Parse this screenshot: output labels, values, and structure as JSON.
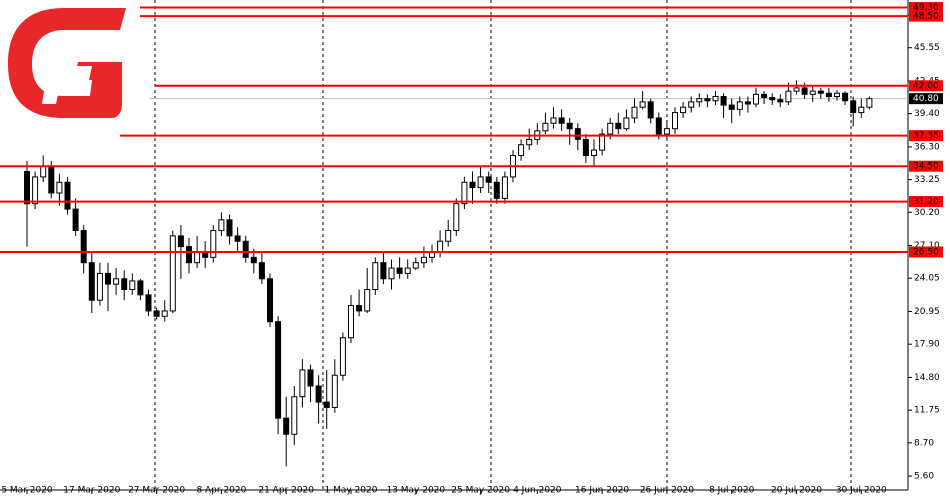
{
  "chart_data": {
    "type": "candlestick",
    "categories": [
      "5 Mar 2020",
      null,
      null,
      null,
      null,
      null,
      null,
      null,
      "17 Mar 2020",
      null,
      null,
      null,
      null,
      null,
      null,
      null,
      "27 Mar 2020",
      null,
      null,
      null,
      null,
      null,
      null,
      null,
      "8 Apr 2020",
      null,
      null,
      null,
      null,
      null,
      null,
      null,
      "21 Apr 2020",
      null,
      null,
      null,
      null,
      null,
      null,
      null,
      "1 May 2020",
      null,
      null,
      null,
      null,
      null,
      null,
      null,
      "13 May 2020",
      null,
      null,
      null,
      null,
      null,
      null,
      null,
      "25 May 2020",
      null,
      null,
      null,
      null,
      null,
      null,
      "4 Jun 2020",
      null,
      null,
      null,
      null,
      null,
      null,
      null,
      "16 Jun 2020",
      null,
      null,
      null,
      null,
      null,
      null,
      null,
      "26 Jun 2020",
      null,
      null,
      null,
      null,
      null,
      null,
      null,
      "8 Jul 2020",
      null,
      null,
      null,
      null,
      null,
      null,
      null,
      "20 Jul 2020",
      null,
      null,
      null,
      null,
      null,
      null,
      null,
      "30 Jul 2020",
      null
    ],
    "open": [
      34.0,
      31.0,
      33.5,
      34.5,
      32.0,
      33.0,
      30.5,
      28.5,
      25.5,
      22.0,
      24.5,
      23.5,
      24.0,
      23.0,
      23.8,
      22.5,
      21.0,
      20.5,
      21.0,
      28.0,
      27.0,
      25.5,
      26.5,
      26.0,
      28.5,
      29.5,
      28.0,
      27.5,
      26.0,
      25.5,
      24.0,
      20.0,
      11.0,
      9.5,
      13.0,
      15.5,
      14.0,
      12.5,
      12.0,
      15.0,
      18.5,
      21.5,
      21.0,
      23.0,
      25.5,
      24.0,
      25.0,
      24.5,
      25.0,
      25.5,
      26.0,
      26.5,
      27.5,
      28.5,
      31.0,
      33.0,
      32.5,
      33.5,
      33.0,
      31.5,
      33.5,
      35.5,
      36.5,
      37.0,
      37.8,
      38.5,
      39.0,
      38.5,
      38.0,
      37.0,
      35.5,
      36.0,
      37.5,
      38.5,
      38.0,
      39.0,
      40.0,
      40.5,
      39.0,
      37.5,
      38.0,
      39.5,
      40.0,
      40.5,
      40.8,
      40.6,
      41.0,
      40.2,
      39.8,
      40.5,
      40.3,
      41.2,
      40.9,
      40.7,
      40.5,
      41.5,
      41.8,
      41.2,
      41.5,
      41.3,
      41.0,
      41.3,
      40.6,
      39.5,
      40.0
    ],
    "high": [
      35.0,
      34.0,
      35.5,
      35.0,
      33.8,
      33.5,
      31.5,
      29.0,
      26.5,
      25.5,
      25.5,
      25.0,
      24.8,
      24.5,
      24.0,
      23.0,
      21.3,
      22.0,
      28.5,
      29.0,
      27.8,
      28.0,
      27.5,
      29.0,
      30.2,
      30.0,
      28.8,
      28.0,
      26.8,
      26.5,
      24.5,
      20.5,
      13.0,
      14.0,
      16.5,
      16.0,
      15.0,
      15.5,
      16.5,
      19.0,
      22.5,
      23.0,
      25.0,
      26.0,
      26.5,
      25.8,
      26.0,
      25.8,
      26.0,
      27.0,
      27.2,
      28.5,
      29.5,
      31.5,
      33.5,
      34.0,
      34.5,
      34.0,
      33.5,
      34.0,
      36.0,
      37.0,
      38.0,
      38.5,
      39.5,
      40.0,
      39.8,
      39.0,
      38.5,
      37.5,
      37.0,
      38.0,
      39.0,
      39.5,
      39.8,
      40.8,
      41.5,
      40.8,
      39.5,
      38.8,
      40.0,
      40.5,
      41.0,
      41.3,
      41.2,
      41.5,
      41.3,
      40.8,
      41.0,
      41.0,
      41.8,
      41.5,
      41.3,
      41.2,
      42.3,
      42.5,
      42.3,
      42.0,
      41.8,
      41.8,
      41.6,
      41.5,
      41.0,
      40.8,
      41.0
    ],
    "low": [
      27.0,
      30.5,
      33.0,
      31.5,
      30.8,
      30.0,
      28.0,
      24.5,
      20.8,
      21.5,
      21.0,
      22.5,
      22.0,
      22.5,
      22.0,
      20.5,
      20.2,
      20.0,
      20.8,
      24.0,
      24.5,
      25.0,
      25.0,
      25.5,
      28.0,
      27.2,
      26.5,
      25.5,
      24.5,
      23.5,
      19.5,
      9.5,
      6.5,
      8.5,
      12.0,
      12.5,
      10.5,
      10.0,
      11.5,
      14.5,
      18.0,
      20.5,
      20.8,
      22.5,
      23.5,
      23.0,
      24.0,
      24.0,
      24.8,
      25.0,
      25.5,
      26.0,
      27.0,
      28.0,
      30.5,
      31.0,
      32.0,
      32.0,
      31.0,
      31.0,
      33.0,
      35.0,
      36.0,
      36.5,
      37.5,
      38.0,
      37.8,
      36.5,
      36.0,
      34.8,
      34.5,
      35.5,
      37.0,
      37.5,
      37.8,
      38.5,
      39.8,
      38.5,
      37.0,
      37.0,
      37.5,
      39.0,
      39.5,
      40.0,
      40.0,
      40.2,
      39.0,
      38.5,
      39.2,
      39.5,
      40.0,
      40.3,
      40.2,
      40.0,
      40.2,
      41.2,
      40.8,
      40.5,
      40.8,
      40.5,
      40.6,
      40.2,
      38.2,
      39.0,
      39.8
    ],
    "close": [
      31.0,
      33.5,
      34.5,
      32.0,
      33.0,
      30.5,
      28.5,
      25.5,
      22.0,
      24.5,
      23.5,
      24.0,
      23.0,
      23.8,
      22.5,
      21.0,
      20.5,
      21.0,
      28.0,
      27.0,
      25.5,
      26.5,
      26.0,
      28.5,
      29.5,
      28.0,
      27.5,
      26.0,
      25.5,
      24.0,
      20.0,
      11.0,
      9.5,
      13.0,
      15.5,
      14.0,
      12.5,
      12.0,
      15.0,
      18.5,
      21.5,
      21.0,
      23.0,
      25.5,
      24.0,
      25.0,
      24.5,
      25.0,
      25.5,
      26.0,
      26.5,
      27.5,
      28.5,
      31.0,
      33.0,
      32.5,
      33.5,
      33.0,
      31.5,
      33.5,
      35.5,
      36.5,
      37.0,
      37.8,
      38.5,
      39.0,
      38.5,
      38.0,
      37.0,
      35.5,
      36.0,
      37.5,
      38.5,
      38.0,
      39.0,
      40.0,
      40.5,
      39.0,
      37.5,
      38.0,
      39.5,
      40.0,
      40.5,
      40.8,
      40.6,
      41.0,
      40.2,
      39.8,
      40.5,
      40.3,
      41.2,
      40.9,
      40.7,
      40.5,
      41.5,
      41.8,
      41.2,
      41.5,
      41.3,
      41.0,
      41.3,
      40.6,
      39.5,
      40.0,
      40.8
    ],
    "ylim": [
      4.3,
      50.0
    ],
    "yticks": [
      {
        "value": 5.6,
        "label": "5.60"
      },
      {
        "value": 8.7,
        "label": "8.70"
      },
      {
        "value": 11.75,
        "label": "11.75"
      },
      {
        "value": 14.8,
        "label": "14.80"
      },
      {
        "value": 17.9,
        "label": "17.90"
      },
      {
        "value": 20.95,
        "label": "20.95"
      },
      {
        "value": 24.05,
        "label": "24.05"
      },
      {
        "value": 27.1,
        "label": "27.10"
      },
      {
        "value": 30.2,
        "label": "30.20"
      },
      {
        "value": 33.25,
        "label": "33.25"
      },
      {
        "value": 36.3,
        "label": "36.30"
      },
      {
        "value": 39.4,
        "label": "39.40"
      },
      {
        "value": 42.45,
        "label": "42.45"
      },
      {
        "value": 45.55,
        "label": "45.55"
      },
      {
        "value": 48.6,
        "label": "48.60"
      }
    ],
    "levels": [
      {
        "value": 49.3,
        "label": "49.30"
      },
      {
        "value": 48.5,
        "label": "48.50"
      },
      {
        "value": 42.0,
        "label": "42.00"
      },
      {
        "value": 37.35,
        "label": "37.35"
      },
      {
        "value": 34.5,
        "label": "34.50"
      },
      {
        "value": 31.2,
        "label": "31.20"
      },
      {
        "value": 26.5,
        "label": "26.50"
      }
    ],
    "level_color": "#ff0000",
    "current_price": {
      "value": 40.8,
      "label": "40.80"
    },
    "up_color": "#ffffff",
    "down_color": "#000000"
  }
}
